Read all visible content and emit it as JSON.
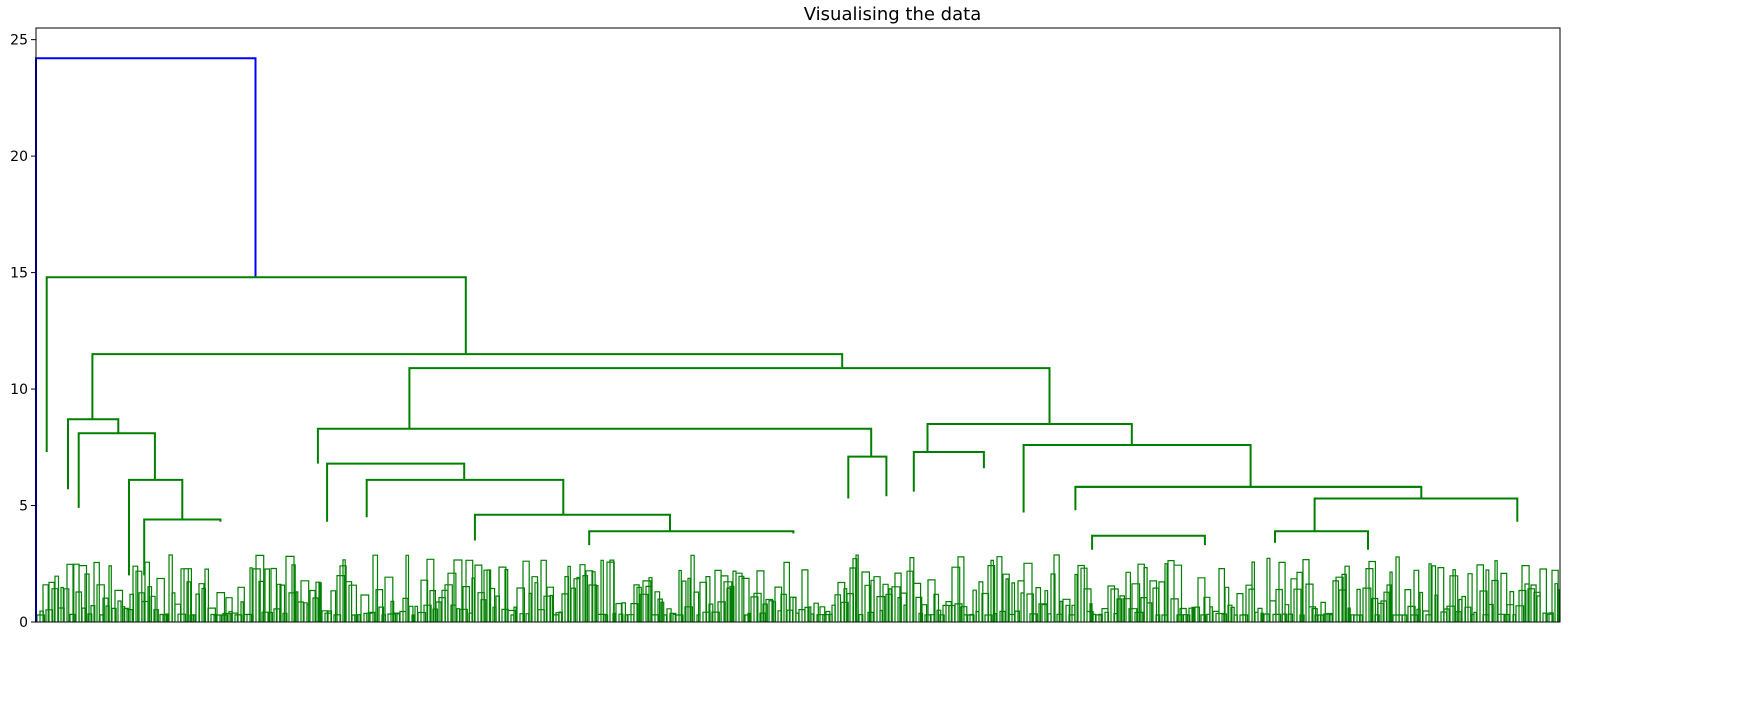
{
  "chart_data": {
    "type": "dendrogram",
    "title": "Visualising the data",
    "xlabel": "",
    "ylabel": "",
    "ylim": [
      0,
      25.5
    ],
    "yticks": [
      0,
      5,
      10,
      15,
      20,
      25
    ],
    "x_leaf_range": [
      0,
      100
    ],
    "grid": false,
    "colors": {
      "cluster": "#008000",
      "root": "#0000ff",
      "axes": "#000000"
    },
    "links": [
      {
        "x": [
          0,
          0,
          14.4,
          14.4
        ],
        "y": [
          0,
          24.2,
          24.2,
          14.8
        ],
        "color": "root"
      },
      {
        "x": [
          0.7,
          0.7,
          28.2,
          28.2
        ],
        "y": [
          7.3,
          14.8,
          14.8,
          11.5
        ],
        "color": "cluster"
      },
      {
        "x": [
          3.7,
          3.7,
          52.9,
          52.9
        ],
        "y": [
          8.7,
          11.5,
          11.5,
          10.9
        ],
        "color": "cluster"
      },
      {
        "x": [
          2.1,
          2.1,
          5.4,
          5.4
        ],
        "y": [
          5.7,
          8.7,
          8.7,
          8.1
        ],
        "color": "cluster"
      },
      {
        "x": [
          2.8,
          2.8,
          7.8,
          7.8
        ],
        "y": [
          4.9,
          8.1,
          8.1,
          6.1
        ],
        "color": "cluster"
      },
      {
        "x": [
          6.1,
          6.1,
          9.6,
          9.6
        ],
        "y": [
          2.0,
          6.1,
          6.1,
          4.4
        ],
        "color": "cluster"
      },
      {
        "x": [
          7.1,
          7.1,
          12.1,
          12.1
        ],
        "y": [
          2.0,
          4.4,
          4.4,
          4.3
        ],
        "color": "cluster"
      },
      {
        "x": [
          24.5,
          24.5,
          66.5,
          66.5
        ],
        "y": [
          8.3,
          10.9,
          10.9,
          8.5
        ],
        "color": "cluster"
      },
      {
        "x": [
          18.5,
          18.5,
          54.8,
          54.8
        ],
        "y": [
          6.8,
          8.3,
          8.3,
          7.1
        ],
        "color": "cluster"
      },
      {
        "x": [
          19.1,
          19.1,
          28.1,
          28.1
        ],
        "y": [
          4.3,
          6.8,
          6.8,
          6.1
        ],
        "color": "cluster"
      },
      {
        "x": [
          21.7,
          21.7,
          34.6,
          34.6
        ],
        "y": [
          4.5,
          6.1,
          6.1,
          4.6
        ],
        "color": "cluster"
      },
      {
        "x": [
          28.8,
          28.8,
          41.6,
          41.6
        ],
        "y": [
          3.5,
          4.6,
          4.6,
          3.9
        ],
        "color": "cluster"
      },
      {
        "x": [
          36.3,
          36.3,
          49.7,
          49.7
        ],
        "y": [
          3.3,
          3.9,
          3.9,
          3.8
        ],
        "color": "cluster"
      },
      {
        "x": [
          53.3,
          53.3,
          55.8,
          55.8
        ],
        "y": [
          5.3,
          7.1,
          7.1,
          5.4
        ],
        "color": "cluster"
      },
      {
        "x": [
          58.5,
          58.5,
          71.9,
          71.9
        ],
        "y": [
          7.3,
          8.5,
          8.5,
          7.6
        ],
        "color": "cluster"
      },
      {
        "x": [
          57.6,
          57.6,
          62.2,
          62.2
        ],
        "y": [
          5.6,
          7.3,
          7.3,
          6.6
        ],
        "color": "cluster"
      },
      {
        "x": [
          64.8,
          64.8,
          79.7,
          79.7
        ],
        "y": [
          4.7,
          7.6,
          7.6,
          5.8
        ],
        "color": "cluster"
      },
      {
        "x": [
          68.2,
          68.2,
          90.9,
          90.9
        ],
        "y": [
          5.8,
          5.8,
          5.8,
          5.8
        ],
        "color": "cluster"
      },
      {
        "x": [
          68.2,
          68.2,
          90.9,
          90.9
        ],
        "y": [
          4.8,
          5.8,
          5.8,
          5.3
        ],
        "color": "cluster"
      },
      {
        "x": [
          83.9,
          83.9,
          97.2,
          97.2
        ],
        "y": [
          3.9,
          5.3,
          5.3,
          4.3
        ],
        "color": "cluster"
      },
      {
        "x": [
          69.3,
          69.3,
          76.7,
          76.7
        ],
        "y": [
          3.1,
          3.7,
          3.7,
          3.3
        ],
        "color": "cluster"
      },
      {
        "x": [
          81.3,
          81.3,
          87.4,
          87.4
        ],
        "y": [
          3.4,
          3.9,
          3.9,
          3.1
        ],
        "color": "cluster"
      }
    ]
  }
}
